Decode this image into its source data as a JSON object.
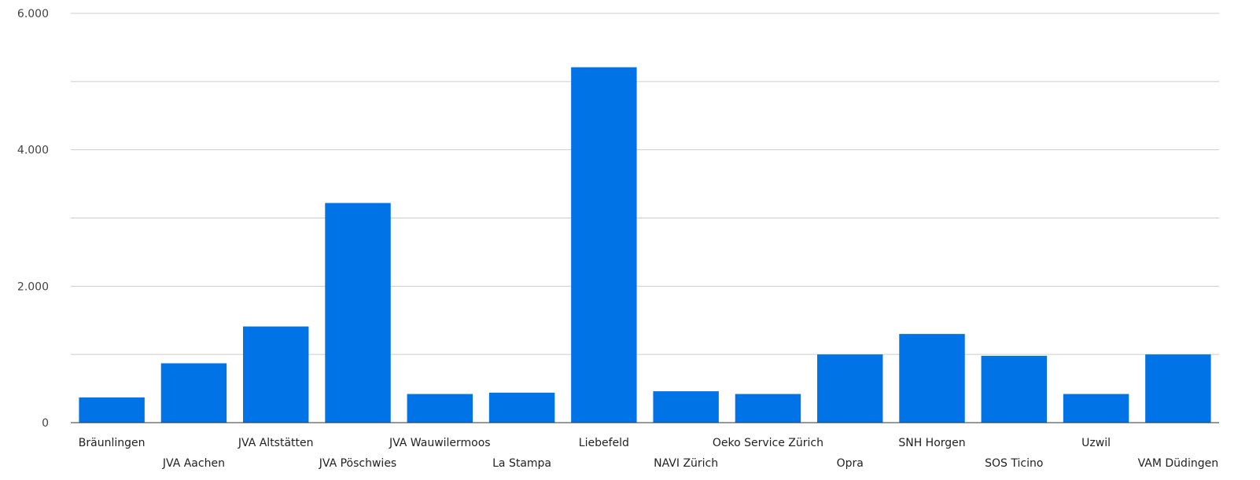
{
  "chart_data": {
    "type": "bar",
    "title": "",
    "xlabel": "",
    "ylabel": "",
    "ylim": [
      0,
      6000
    ],
    "grid": true,
    "legend": "none",
    "bar_color": "#0073e6",
    "yticks": [
      0,
      2000,
      4000,
      6000
    ],
    "ytick_labels": [
      "0",
      "2.000",
      "4.000",
      "6.000"
    ],
    "categories": [
      "Bräunlingen",
      "JVA Aachen",
      "JVA Altstätten",
      "JVA Pöschwies",
      "JVA Wauwilermoos",
      "La Stampa",
      "Liebefeld",
      "NAVI Zürich",
      "Oeko Service Zürich",
      "Opra",
      "SNH Horgen",
      "SOS Ticino",
      "Uzwil",
      "VAM Düdingen"
    ],
    "values": [
      370,
      870,
      1410,
      3220,
      420,
      440,
      5210,
      460,
      420,
      1000,
      1300,
      980,
      420,
      1000
    ]
  }
}
